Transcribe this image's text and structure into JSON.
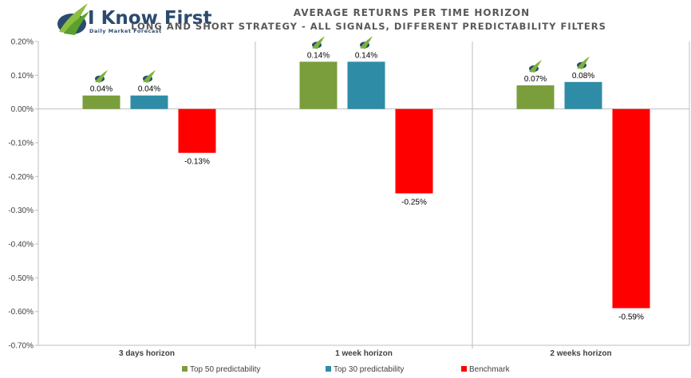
{
  "logo": {
    "brand": "I Know First",
    "tagline": "Daily Market Forecast"
  },
  "chart_data": {
    "type": "bar",
    "title": "AVERAGE RETURNS PER TIME HORIZON",
    "subtitle": "LONG AND SHORT STRATEGY - ALL SIGNALS, DIFFERENT PREDICTABILITY FILTERS",
    "categories": [
      "3 days horizon",
      "1 week horizon",
      "2 weeks horizon"
    ],
    "series": [
      {
        "name": "Top 50 predictability",
        "values": [
          0.04,
          0.14,
          0.07
        ],
        "labels": [
          "0.04%",
          "0.14%",
          "0.07%"
        ],
        "color": "#7a9e3c"
      },
      {
        "name": "Top 30 predictability",
        "values": [
          0.04,
          0.14,
          0.08
        ],
        "labels": [
          "0.04%",
          "0.14%",
          "0.08%"
        ],
        "color": "#2f8ca6"
      },
      {
        "name": "Benchmark",
        "values": [
          -0.13,
          -0.25,
          -0.59
        ],
        "labels": [
          "-0.13%",
          "-0.25%",
          "-0.59%"
        ],
        "color": "#ff0000"
      }
    ],
    "ylim": [
      -0.7,
      0.2
    ],
    "yticks": [
      "0.20%",
      "0.10%",
      "0.00%",
      "-0.10%",
      "-0.20%",
      "-0.30%",
      "-0.40%",
      "-0.50%",
      "-0.60%",
      "-0.70%"
    ],
    "legend_position": "bottom",
    "grid": false
  }
}
